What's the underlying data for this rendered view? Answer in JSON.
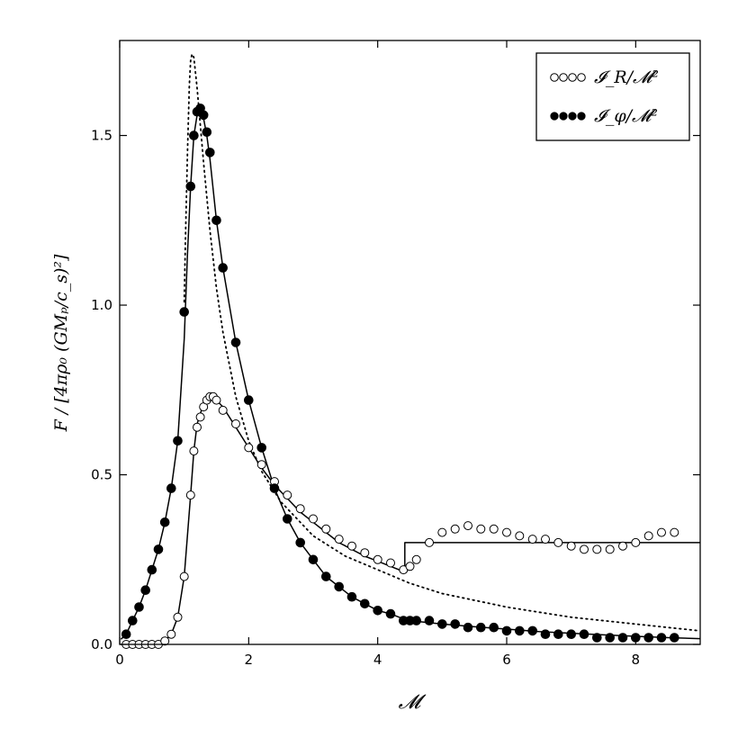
{
  "chart_data": {
    "type": "scatter",
    "xlabel": "𝓜",
    "ylabel": "F / [4πρ₀ (GMₚ/c_s)²]",
    "xlim": [
      0,
      9
    ],
    "ylim": [
      0,
      1.78
    ],
    "xticks": [
      0,
      2,
      4,
      6,
      8
    ],
    "yticks": [
      0.0,
      0.5,
      1.0,
      1.5
    ],
    "xtick_labels": [
      "0",
      "2",
      "4",
      "6",
      "8"
    ],
    "ytick_labels": [
      "0.0",
      "0.5",
      "1.0",
      "1.5"
    ],
    "grid": false,
    "legend_position": "top-right",
    "legend": [
      {
        "label": "𝓘_R/𝓜²",
        "marker": "open-circle"
      },
      {
        "label": "𝓘_φ/𝓜²",
        "marker": "filled-circle"
      }
    ],
    "series": [
      {
        "name": "𝓘_R/𝓜²",
        "style": "open-circle",
        "x": [
          0.1,
          0.2,
          0.3,
          0.4,
          0.5,
          0.6,
          0.7,
          0.8,
          0.9,
          1.0,
          1.1,
          1.15,
          1.2,
          1.25,
          1.3,
          1.35,
          1.4,
          1.45,
          1.5,
          1.6,
          1.8,
          2.0,
          2.2,
          2.4,
          2.6,
          2.8,
          3.0,
          3.2,
          3.4,
          3.6,
          3.8,
          4.0,
          4.2,
          4.4,
          4.5,
          4.6,
          4.8,
          5.0,
          5.2,
          5.4,
          5.6,
          5.8,
          6.0,
          6.2,
          6.4,
          6.6,
          6.8,
          7.0,
          7.2,
          7.4,
          7.6,
          7.8,
          8.0,
          8.2,
          8.4,
          8.6
        ],
        "y": [
          0.0,
          0.0,
          0.0,
          0.0,
          0.0,
          0.0,
          0.01,
          0.03,
          0.08,
          0.2,
          0.44,
          0.57,
          0.64,
          0.67,
          0.7,
          0.72,
          0.73,
          0.73,
          0.72,
          0.69,
          0.65,
          0.58,
          0.53,
          0.48,
          0.44,
          0.4,
          0.37,
          0.34,
          0.31,
          0.29,
          0.27,
          0.25,
          0.24,
          0.22,
          0.23,
          0.25,
          0.3,
          0.33,
          0.34,
          0.35,
          0.34,
          0.34,
          0.33,
          0.32,
          0.31,
          0.31,
          0.3,
          0.29,
          0.28,
          0.28,
          0.28,
          0.29,
          0.3,
          0.32,
          0.33,
          0.33
        ]
      },
      {
        "name": "𝓘_φ/𝓜²",
        "style": "filled-circle",
        "x": [
          0.1,
          0.2,
          0.3,
          0.4,
          0.5,
          0.6,
          0.7,
          0.8,
          0.9,
          1.0,
          1.1,
          1.15,
          1.2,
          1.25,
          1.3,
          1.35,
          1.4,
          1.5,
          1.6,
          1.8,
          2.0,
          2.2,
          2.4,
          2.6,
          2.8,
          3.0,
          3.2,
          3.4,
          3.6,
          3.8,
          4.0,
          4.2,
          4.4,
          4.5,
          4.6,
          4.8,
          5.0,
          5.2,
          5.4,
          5.6,
          5.8,
          6.0,
          6.2,
          6.4,
          6.6,
          6.8,
          7.0,
          7.2,
          7.4,
          7.6,
          7.8,
          8.0,
          8.2,
          8.4,
          8.6
        ],
        "y": [
          0.03,
          0.07,
          0.11,
          0.16,
          0.22,
          0.28,
          0.36,
          0.46,
          0.6,
          0.98,
          1.35,
          1.5,
          1.57,
          1.58,
          1.56,
          1.51,
          1.45,
          1.25,
          1.11,
          0.89,
          0.72,
          0.58,
          0.46,
          0.37,
          0.3,
          0.25,
          0.2,
          0.17,
          0.14,
          0.12,
          0.1,
          0.09,
          0.07,
          0.07,
          0.07,
          0.07,
          0.06,
          0.06,
          0.05,
          0.05,
          0.05,
          0.04,
          0.04,
          0.04,
          0.03,
          0.03,
          0.03,
          0.03,
          0.02,
          0.02,
          0.02,
          0.02,
          0.02,
          0.02,
          0.02
        ]
      },
      {
        "name": "",
        "style": "solid-line",
        "x": [
          0.02,
          0.1,
          0.2,
          0.3,
          0.4,
          0.5,
          0.6,
          0.7,
          0.8,
          0.9,
          1.0,
          1.05,
          1.1,
          1.15,
          1.2,
          1.25,
          1.3,
          1.35,
          1.4,
          1.5,
          1.6,
          1.8,
          2.0,
          2.2,
          2.4,
          2.6,
          2.8,
          3.0,
          3.2,
          3.4,
          3.6,
          3.8,
          4.0,
          4.2,
          4.4,
          4.6,
          4.8,
          5.0,
          5.5,
          6.0,
          6.5,
          7.0,
          7.5,
          8.0,
          8.5,
          9.0
        ],
        "y": [
          0.015,
          0.03,
          0.07,
          0.11,
          0.16,
          0.22,
          0.28,
          0.36,
          0.46,
          0.6,
          0.9,
          1.15,
          1.35,
          1.5,
          1.56,
          1.58,
          1.55,
          1.5,
          1.43,
          1.25,
          1.11,
          0.89,
          0.72,
          0.58,
          0.46,
          0.37,
          0.3,
          0.25,
          0.2,
          0.17,
          0.14,
          0.12,
          0.1,
          0.09,
          0.075,
          0.068,
          0.064,
          0.06,
          0.052,
          0.045,
          0.038,
          0.033,
          0.028,
          0.024,
          0.02,
          0.017
        ]
      },
      {
        "name": "",
        "style": "solid-line",
        "x": [
          0.02,
          0.3,
          0.5,
          0.6,
          0.7,
          0.8,
          0.9,
          1.0,
          1.1,
          1.15,
          1.2,
          1.3,
          1.4,
          1.5,
          1.6,
          1.8,
          2.0,
          2.2,
          2.4,
          2.6,
          2.8,
          3.0,
          3.2,
          3.4,
          3.6,
          3.8,
          4.0,
          4.2,
          4.4,
          4.42,
          4.42,
          4.6,
          5.0,
          6.0,
          7.0,
          8.0,
          9.0
        ],
        "y": [
          0.0,
          0.0,
          0.0,
          0.003,
          0.01,
          0.03,
          0.08,
          0.2,
          0.44,
          0.57,
          0.65,
          0.71,
          0.73,
          0.72,
          0.7,
          0.64,
          0.58,
          0.52,
          0.47,
          0.43,
          0.39,
          0.36,
          0.33,
          0.3,
          0.28,
          0.26,
          0.245,
          0.23,
          0.215,
          0.215,
          0.3,
          0.3,
          0.3,
          0.3,
          0.3,
          0.3,
          0.3
        ]
      },
      {
        "name": "",
        "style": "dotted-line",
        "x": [
          1.0,
          1.02,
          1.05,
          1.08,
          1.1,
          1.12,
          1.15,
          1.2,
          1.3,
          1.4,
          1.5,
          1.6,
          1.8,
          2.0,
          2.2,
          2.5,
          3.0,
          3.5,
          4.0,
          4.5,
          5.0,
          5.5,
          6.0,
          6.5,
          7.0,
          7.5,
          8.0,
          8.5,
          9.0
        ],
        "y": [
          1.01,
          1.2,
          1.45,
          1.65,
          1.72,
          1.74,
          1.73,
          1.64,
          1.42,
          1.22,
          1.05,
          0.92,
          0.73,
          0.6,
          0.51,
          0.42,
          0.32,
          0.26,
          0.22,
          0.18,
          0.15,
          0.13,
          0.11,
          0.095,
          0.08,
          0.07,
          0.06,
          0.05,
          0.04
        ]
      }
    ]
  }
}
